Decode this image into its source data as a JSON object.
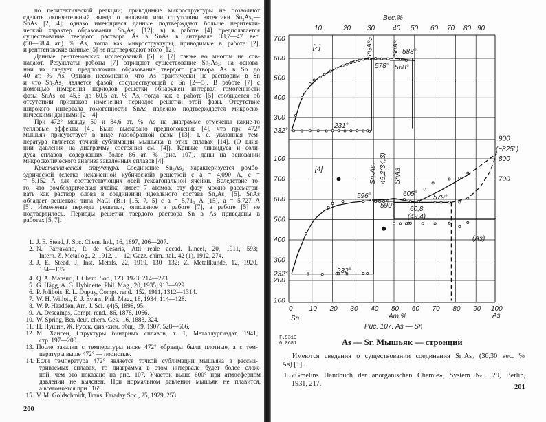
{
  "left_page": {
    "paragraphs": [
      {
        "lines": [
          "по перитектической реакции; приводимые микроструктуры не позволяют",
          "сделать окончательный вывод о наличии или отсутствии эвтектики Sn₃As₂—",
          "SnAs [2, 4]; однако имеющиеся данные подтверждают больше перитекти-",
          "ческий характер образования Sn₃As₂ [12]; в) в работе [4] предполагается",
          "существование твердого раствора As в SnAs в интервале 38,7—47 вес.",
          "(50—58,4 ат.) % As, тогда как микроструктуры, приводимые в работе [2],",
          "и рентгеновские данные [5] не подтверждают этого [12]."
        ]
      },
      {
        "lines": [
          "Данные рентгеновских исследований [5] и [7] также во многом не сов-",
          "падают. Результаты работы [7] отрицают существование Sn₃As₂; на основа-",
          "нии их следует предположить образование твердого раствора As в Sn до",
          "40 ат. % As. Однако несомненно, что As практически не растворим в Sn",
          "и что Sn₃As₂ является фазой, сосуществующей с Sn [2—5]. В работе [7] с",
          "помощью измерения периодов решетки обнаружен интервал гомогенности",
          "фазы SnAs от 45,5 до 60,5 ат. % As, тогда как в работе [5] сообщается об",
          "отсутствии признаков изменения периодов решетки этой фазы. Отсутствие",
          "широкого интервала гомогенности SnAs надежно подтверждается микроско-",
          "пическими данными [2—4]"
        ]
      },
      {
        "lines": [
          "При 472° между 50 и 84,6 ат. % As на диаграмме отмечены какие-то",
          "тепловые эффекты [4]. Было высказано предположение [4], что при 472°",
          "мышьяк присутствует в виде газообразной фазы [13], т. е. указанная тем-",
          "пература является точкой сублимации мышьяка в этих сплавах [14]. (О влия-",
          "нии давления на диаграмму состояния см. [4]). Кривые ликвидуса и соли-",
          "дуса сплавов, содержащих более 86 ат. % (рис. 107), даны на основании",
          "микроскопического анализа закаленных сплавов [4]."
        ]
      },
      {
        "lead": "Кристаллическая структура.",
        "lines": [
          " Соединение Sn₃As₂ характеризуется ромбо-",
          "эдрической (слегка искаженной кубической) решеткой с a = 4,090 Å, c =",
          "= 5,152 Å для соответствующих осей гексагональной ячейки. Вследствие то-",
          "го, что ромбоэдрическая ячейка имеет 7 атомов, эту фазу можно рассматри-",
          "вать как раствор олова в соединении идеального состава Sn₄As₃ [5]. SnAs",
          "обладает решеткой типа NaCl (B1) [15, 7, 5] с a = 5,71₃ Å [15], a = 5,727 Å",
          "[5]. Изменение периода решетки, описанное в работе [7], в работе [5] не",
          "подтвердилось. Периоды решетки твердого раствора Sn в As приведены в",
          "работах [5, 7]."
        ]
      }
    ],
    "references": [
      {
        "num": "1.",
        "lines": [
          "J. E. Stead, J. Soc. Chem. Ind., 16, 1897, 206—207."
        ]
      },
      {
        "num": "2.",
        "lines": [
          "N. Parravano, P. de Cesaris, Atti reale accad. Lincei, 20, 1911, 593;",
          "Intern. Z. Metallog., 2, 1912, 1—12; Gazz. chim. ital., 42 (1), 1912, 274."
        ]
      },
      {
        "num": "3.",
        "lines": [
          "J. E. Stead, J. Inst. Metals, 22, 1919, 130—132; Z. Metallkunde, 12, 1920,",
          "134—135."
        ]
      },
      {
        "num": "4.",
        "lines": [
          "Q. A. Mansuri, J. Chem. Soc., 123, 1923, 214—223."
        ]
      },
      {
        "num": "5.",
        "lines": [
          "G. Hägg, A. G. Hybinette, Phil. Mag., 20, 1935, 913—929."
        ]
      },
      {
        "num": "6.",
        "lines": [
          "P. Jolibois, E. L. Dupuy, Compt. rend., 152, 1911, 1312—1314."
        ]
      },
      {
        "num": "7.",
        "lines": [
          "W. H. Willott, E. J. Evans, Phil. Mag., 18, 1934, 114—128."
        ]
      },
      {
        "num": "8.",
        "lines": [
          "W. P. Headden, Am. J. Sci., (4)5, 1898, 95."
        ]
      },
      {
        "num": "9.",
        "lines": [
          "A. Descamps, Compt. rend., 86, 1878, 1066."
        ]
      },
      {
        "num": "10.",
        "lines": [
          "W. Spring, Ber. deut. chem. Ges., 16, 1883, 324."
        ]
      },
      {
        "num": "11.",
        "lines": [
          "Н. Пушин, Ж. Русск. физ.-хим. общ., 39, 1907, 528—566."
        ]
      },
      {
        "num": "12.",
        "lines": [
          "М. Хансен, Структуры бинарных сплавов, т. 1, Металлургиздат, 1941,",
          "стр. 197—200."
        ]
      },
      {
        "num": "13.",
        "lines": [
          "После закалки с температуры ниже 472° образцы были плотные, а с тем-",
          "пературы выше 472° — пористые."
        ]
      },
      {
        "num": "14.",
        "lines": [
          "Если температура 472° является точкой сублимации мышьяка в рассма-",
          "триваемых сплавах, то диаграмма в этом интервале будет более слож-",
          "ной, чем это показано на рис. 107. Участок выше 600° при атмосферном",
          "давлении не выяснен. При нормальном давлении мышьяк не плавится,",
          "а возгоняется при 616°."
        ]
      },
      {
        "num": "15.",
        "lines": [
          "V. M. Goldschmidt, Trans. Faraday Soc., 25, 1929, 253."
        ]
      }
    ],
    "page_number": "200"
  },
  "figure": {
    "top_axis_title": "Вес.%",
    "top_ticks": [
      "10",
      "20",
      "30",
      "40",
      "50",
      "60",
      "70",
      "80",
      "90"
    ],
    "upper_y_ticks": [
      "700",
      "600",
      "500",
      "400",
      "300",
      "232°"
    ],
    "upper_ref": "[2]",
    "upper_labels": {
      "eutectic": "231°",
      "compound1": "Sn₃As₂",
      "compound2": "SnAs",
      "t1": "588°",
      "t2": "578°",
      "t3": "568°"
    },
    "lower_ref": "[4]",
    "lower_y_ticks_left": [
      "100",
      "700",
      "600",
      "500",
      "400",
      "300",
      "232°",
      "200",
      "100"
    ],
    "lower_y_ticks_right": [
      "900",
      "800",
      "700"
    ],
    "lower_labels": {
      "eutectic": "232°",
      "compound1": "Sn₃As₂",
      "compound2": "SnAs",
      "t596": "596°",
      "comp": "45,2(34,3)",
      "t605": "605°",
      "t590": "590°",
      "comp2": "60,8",
      "comp2b": "(49,4)",
      "t579": "579°",
      "t825": "(~825°)",
      "as_phase": "(As)"
    },
    "bottom_ticks": [
      "0",
      "10",
      "20",
      "30",
      "40",
      "50",
      "60",
      "70",
      "80",
      "90",
      "100"
    ],
    "x_left": "Sn",
    "x_right": "As",
    "x_title": "Ат.%",
    "caption": "Рис. 107. As — Sn",
    "upper_liquidus": [
      [
        0,
        232
      ],
      [
        2,
        300
      ],
      [
        4,
        370
      ],
      [
        6,
        420
      ],
      [
        9,
        460
      ],
      [
        13,
        500
      ],
      [
        18,
        530
      ],
      [
        24,
        560
      ],
      [
        30,
        585
      ],
      [
        36,
        598
      ],
      [
        42,
        600
      ],
      [
        48,
        600
      ],
      [
        54,
        597
      ],
      [
        60,
        588
      ]
    ],
    "upper_points": [
      [
        2,
        310
      ],
      [
        5,
        400
      ],
      [
        7,
        440
      ],
      [
        9,
        470
      ],
      [
        11,
        490
      ],
      [
        14,
        505
      ],
      [
        16,
        520
      ],
      [
        19,
        535
      ],
      [
        22,
        550
      ],
      [
        25,
        563
      ],
      [
        27,
        570
      ],
      [
        29,
        578
      ],
      [
        31,
        585
      ],
      [
        33,
        590
      ],
      [
        35,
        595
      ],
      [
        38,
        598
      ],
      [
        41,
        600
      ],
      [
        44,
        598
      ],
      [
        47,
        598
      ],
      [
        50,
        596
      ],
      [
        53,
        594
      ],
      [
        56,
        590
      ]
    ],
    "upper_eutectic_points": [
      [
        1,
        232
      ],
      [
        5,
        231
      ],
      [
        9,
        232
      ],
      [
        13,
        232
      ],
      [
        17,
        231
      ],
      [
        20,
        232
      ],
      [
        23,
        232
      ],
      [
        26,
        231
      ],
      [
        29,
        232
      ],
      [
        32,
        232
      ],
      [
        35,
        231
      ],
      [
        37,
        232
      ],
      [
        38,
        230
      ]
    ],
    "lower_liquidus": [
      [
        0,
        232
      ],
      [
        3,
        330
      ],
      [
        7,
        430
      ],
      [
        11,
        500
      ],
      [
        16,
        545
      ],
      [
        22,
        570
      ],
      [
        30,
        585
      ],
      [
        40,
        596
      ],
      [
        47,
        600
      ],
      [
        50,
        605
      ],
      [
        55,
        595
      ],
      [
        60.8,
        585
      ],
      [
        72,
        640
      ],
      [
        86,
        720
      ]
    ],
    "lower_liquidus_dashed": [
      [
        86,
        720
      ],
      [
        100,
        825
      ]
    ],
    "lower_solidus_dashed": [
      [
        78,
        585
      ],
      [
        86,
        605
      ],
      [
        92,
        660
      ],
      [
        97,
        740
      ],
      [
        100,
        825
      ]
    ],
    "lower_points": [
      [
        7,
        430
      ],
      [
        18,
        560
      ],
      [
        20,
        580
      ],
      [
        25,
        590
      ],
      [
        35,
        590
      ],
      [
        39,
        596
      ],
      [
        41,
        590
      ],
      [
        43,
        590
      ],
      [
        45,
        590
      ],
      [
        47,
        592
      ],
      [
        55,
        600
      ],
      [
        58,
        590
      ],
      [
        62,
        590
      ],
      [
        65,
        650
      ],
      [
        69,
        680
      ],
      [
        77,
        700
      ],
      [
        82,
        705
      ],
      [
        86,
        730
      ],
      [
        70,
        585
      ],
      [
        73,
        585
      ],
      [
        77,
        585
      ],
      [
        82,
        585
      ],
      [
        86,
        605
      ],
      [
        50,
        480
      ],
      [
        53,
        480
      ],
      [
        56,
        480
      ],
      [
        57,
        482
      ],
      [
        58,
        482
      ],
      [
        64,
        480
      ],
      [
        70,
        480
      ],
      [
        77,
        482
      ],
      [
        82,
        465
      ],
      [
        86,
        485
      ],
      [
        8,
        232
      ],
      [
        15,
        230
      ],
      [
        22,
        233
      ],
      [
        23,
        233
      ],
      [
        27,
        232
      ],
      [
        35,
        234
      ],
      [
        37,
        234
      ]
    ]
  },
  "right_page": {
    "code": [
      "Г.9319",
      "0,0681"
    ],
    "heading": "As — Sr. Мышьяк — стронций",
    "text_lines": [
      "Имеются сведения о существовании соединения Sr₃As₂ (36,30 вес. %",
      "As) [1]."
    ],
    "reference": {
      "num": "1.",
      "lines": [
        "«Gmelins Handbuch der anorganischen Chemie», System №. 29, Berlin,",
        "1931, 217."
      ]
    },
    "page_number": "201"
  }
}
